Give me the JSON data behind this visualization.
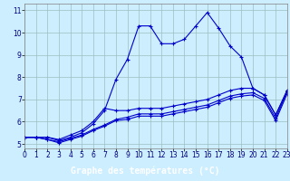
{
  "title": "Graphe des températures (°C)",
  "background_color": "#cceeff",
  "plot_bg_color": "#cceeff",
  "xlabel_bg_color": "#0000aa",
  "line_color": "#0000cc",
  "x_hours": [
    0,
    1,
    2,
    3,
    4,
    5,
    6,
    7,
    8,
    9,
    10,
    11,
    12,
    13,
    14,
    15,
    16,
    17,
    18,
    19,
    20,
    21,
    22,
    23
  ],
  "series": [
    [
      5.3,
      5.3,
      5.3,
      5.15,
      5.3,
      5.5,
      5.9,
      6.5,
      7.9,
      8.8,
      10.3,
      10.3,
      9.5,
      9.5,
      9.7,
      10.3,
      10.9,
      10.2,
      9.4,
      8.9,
      7.5,
      7.2,
      6.3,
      7.4
    ],
    [
      5.3,
      5.3,
      5.3,
      5.2,
      5.4,
      5.6,
      6.0,
      6.6,
      6.5,
      6.5,
      6.6,
      6.6,
      6.6,
      6.7,
      6.8,
      6.9,
      7.0,
      7.2,
      7.4,
      7.5,
      7.5,
      7.2,
      6.3,
      7.4
    ],
    [
      5.3,
      5.3,
      5.2,
      5.1,
      5.25,
      5.4,
      5.65,
      5.85,
      6.1,
      6.2,
      6.35,
      6.35,
      6.35,
      6.45,
      6.55,
      6.65,
      6.75,
      6.95,
      7.15,
      7.25,
      7.3,
      7.05,
      6.15,
      7.35
    ],
    [
      5.3,
      5.3,
      5.2,
      5.05,
      5.2,
      5.35,
      5.6,
      5.8,
      6.05,
      6.1,
      6.25,
      6.25,
      6.25,
      6.35,
      6.45,
      6.55,
      6.65,
      6.85,
      7.05,
      7.15,
      7.2,
      6.95,
      6.05,
      7.25
    ]
  ],
  "xlim": [
    0,
    23
  ],
  "ylim": [
    4.8,
    11.3
  ],
  "yticks": [
    5,
    6,
    7,
    8,
    9,
    10,
    11
  ],
  "xticks": [
    0,
    1,
    2,
    3,
    4,
    5,
    6,
    7,
    8,
    9,
    10,
    11,
    12,
    13,
    14,
    15,
    16,
    17,
    18,
    19,
    20,
    21,
    22,
    23
  ],
  "tick_fontsize": 5.5,
  "xlabel_fontsize": 7.0,
  "marker": "+",
  "markersize": 3.5,
  "linewidth": 0.8
}
